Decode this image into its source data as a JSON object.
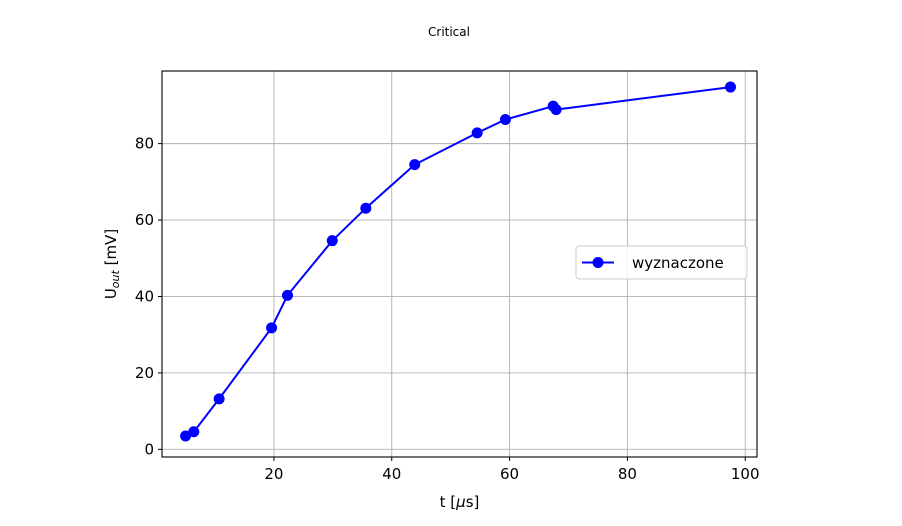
{
  "chart_data": {
    "type": "line",
    "title": "Critical",
    "xlabel_main": "t [",
    "xlabel_greek": "μ",
    "xlabel_rest": "s]",
    "ylabel_main": "U",
    "ylabel_sub": "out",
    "ylabel_rest": " [mV]",
    "xlim": [
      1,
      102
    ],
    "ylim": [
      -2,
      99
    ],
    "xticks": [
      20,
      40,
      60,
      80,
      100
    ],
    "yticks": [
      0,
      20,
      40,
      60,
      80
    ],
    "grid": true,
    "legend_position": "center-right",
    "series": [
      {
        "name": "wyznaczone",
        "color": "#0000ff",
        "marker": "circle",
        "x": [
          5.0,
          6.4,
          10.7,
          19.6,
          22.3,
          29.9,
          35.6,
          43.9,
          54.5,
          59.3,
          67.4,
          67.9,
          97.5
        ],
        "y": [
          3.5,
          4.6,
          13.2,
          31.8,
          40.3,
          54.6,
          63.1,
          74.5,
          82.8,
          86.3,
          89.8,
          88.9,
          94.8
        ]
      }
    ]
  }
}
